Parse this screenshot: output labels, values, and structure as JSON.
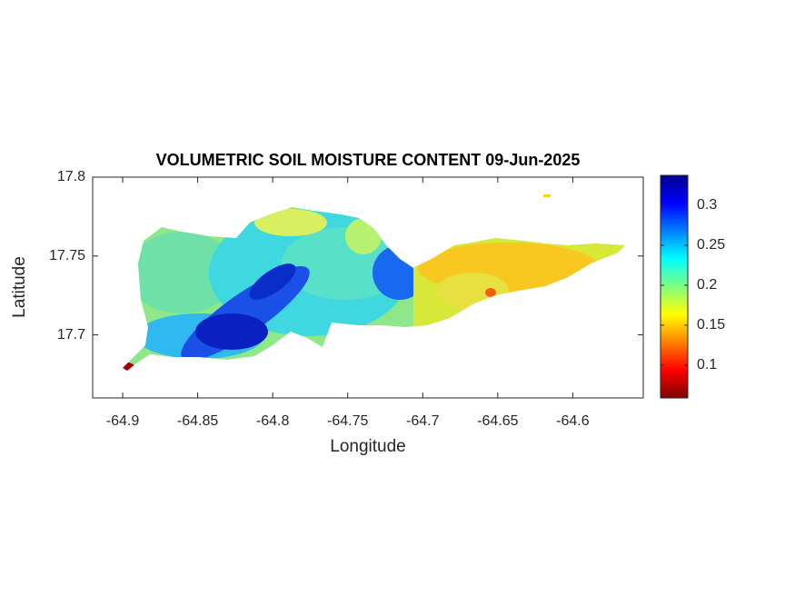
{
  "chart_data": {
    "type": "raster-map",
    "title": "VOLUMETRIC SOIL MOISTURE CONTENT 09-Jun-2025",
    "x_label": "Longitude",
    "y_label": "Latitude",
    "xlim": [
      -64.92,
      -64.553
    ],
    "xticks": [
      -64.9,
      -64.85,
      -64.8,
      -64.75,
      -64.7,
      -64.65,
      -64.6
    ],
    "ylim": [
      17.66,
      17.8
    ],
    "yticks": [
      17.7,
      17.75,
      17.8
    ],
    "colormap": "jet",
    "clim": [
      0.059,
      0.3375
    ],
    "cticks": [
      0.1,
      0.15,
      0.2,
      0.25,
      0.3
    ]
  }
}
